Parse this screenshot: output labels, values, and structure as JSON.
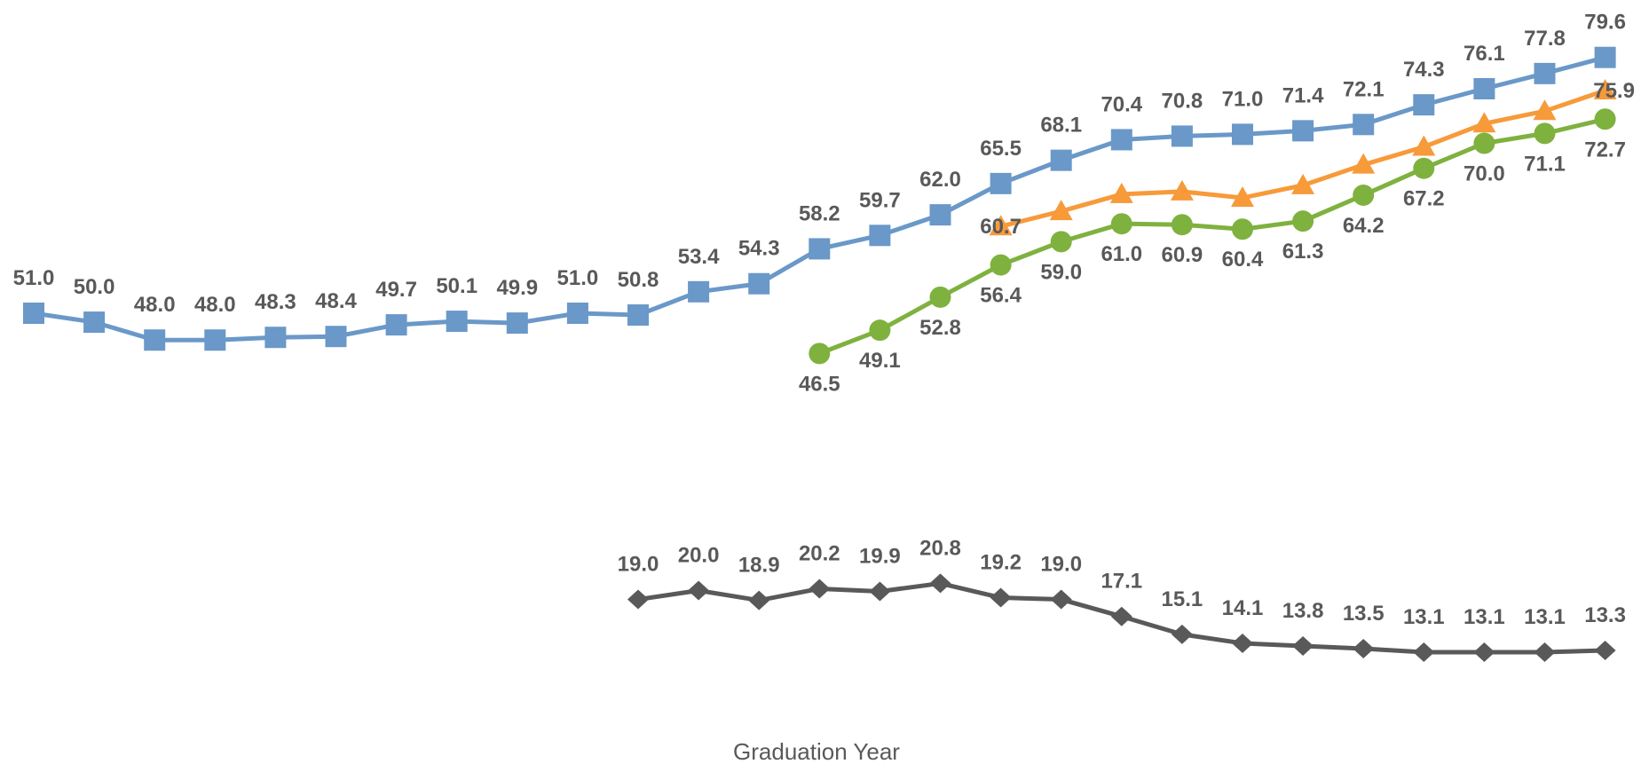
{
  "chart_data": {
    "type": "line",
    "xlabel": "Graduation Year",
    "ylabel": "",
    "title": "",
    "grid": false,
    "legend": "none",
    "x": [
      1,
      2,
      3,
      4,
      5,
      6,
      7,
      8,
      9,
      10,
      11,
      12,
      13,
      14,
      15,
      16,
      17,
      18,
      19,
      20,
      21,
      22,
      23,
      24,
      25,
      26,
      27
    ],
    "series": [
      {
        "color": "#6a98c8",
        "marker": "square",
        "values": [
          51.0,
          50.0,
          48.0,
          48.0,
          48.3,
          48.4,
          49.7,
          50.1,
          49.9,
          51.0,
          50.8,
          53.4,
          54.3,
          58.2,
          59.7,
          62.0,
          65.5,
          68.1,
          70.4,
          70.8,
          71.0,
          71.4,
          72.1,
          74.3,
          76.1,
          77.8,
          79.6
        ],
        "labels": [
          "51.0",
          "50.0",
          "48.0",
          "48.0",
          "48.3",
          "48.4",
          "49.7",
          "50.1",
          "49.9",
          "51.0",
          "50.8",
          "53.4",
          "54.3",
          "58.2",
          "59.7",
          "62.0",
          "65.5",
          "68.1",
          "70.4",
          "70.8",
          "71.0",
          "71.4",
          "72.1",
          "74.3",
          "76.1",
          "77.8",
          "79.6"
        ]
      },
      {
        "color": "#f79a3a",
        "marker": "triangle",
        "values": [
          null,
          null,
          null,
          null,
          null,
          null,
          null,
          null,
          null,
          null,
          null,
          null,
          null,
          null,
          null,
          null,
          60.7,
          62.4,
          64.3,
          64.6,
          63.9,
          65.3,
          67.6,
          69.6,
          72.2,
          73.6,
          75.9
        ],
        "labels": [
          null,
          null,
          null,
          null,
          null,
          null,
          null,
          null,
          null,
          null,
          null,
          null,
          null,
          null,
          null,
          null,
          "60.7",
          null,
          null,
          null,
          null,
          null,
          null,
          null,
          null,
          null,
          "75.9"
        ]
      },
      {
        "color": "#7fb13f",
        "marker": "circle",
        "values": [
          null,
          null,
          null,
          null,
          null,
          null,
          null,
          null,
          null,
          null,
          null,
          null,
          null,
          46.5,
          49.1,
          52.8,
          56.4,
          59.0,
          61.0,
          60.9,
          60.4,
          61.3,
          64.2,
          67.2,
          70.0,
          71.1,
          72.7
        ],
        "labels": [
          null,
          null,
          null,
          null,
          null,
          null,
          null,
          null,
          null,
          null,
          null,
          null,
          null,
          "46.5",
          "49.1",
          "52.8",
          "56.4",
          "59.0",
          "61.0",
          "60.9",
          "60.4",
          "61.3",
          "64.2",
          "67.2",
          "70.0",
          "71.1",
          "72.7"
        ]
      },
      {
        "color": "#595959",
        "marker": "diamond",
        "values": [
          null,
          null,
          null,
          null,
          null,
          null,
          null,
          null,
          null,
          null,
          19.0,
          20.0,
          18.9,
          20.2,
          19.9,
          20.8,
          19.2,
          19.0,
          17.1,
          15.1,
          14.1,
          13.8,
          13.5,
          13.1,
          13.1,
          13.1,
          13.3
        ],
        "labels": [
          null,
          null,
          null,
          null,
          null,
          null,
          null,
          null,
          null,
          null,
          "19.0",
          "20.0",
          "18.9",
          "20.2",
          "19.9",
          "20.8",
          "19.2",
          "19.0",
          "17.1",
          "15.1",
          "14.1",
          "13.8",
          "13.5",
          "13.1",
          "13.1",
          "13.1",
          "13.3"
        ]
      }
    ]
  }
}
